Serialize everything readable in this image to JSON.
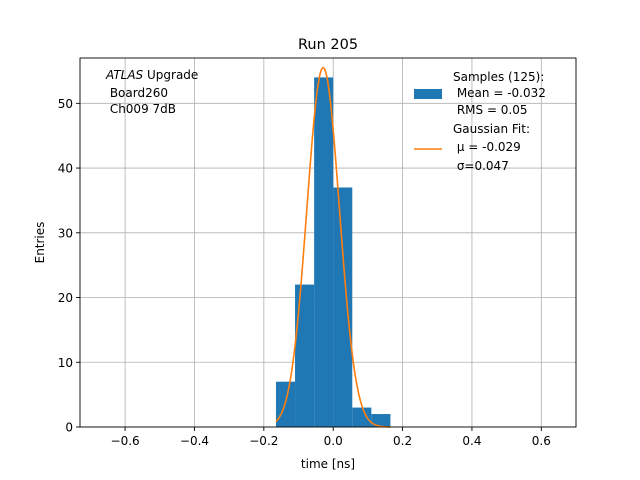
{
  "chart_data": {
    "type": "bar",
    "title": "Run 205",
    "xlabel": "time [ns]",
    "ylabel": "Entries",
    "xlim": [
      -0.73,
      0.7
    ],
    "ylim": [
      0,
      57
    ],
    "grid": true,
    "x_ticks": [
      -0.6,
      -0.4,
      -0.2,
      0.0,
      0.2,
      0.4,
      0.6
    ],
    "x_tick_labels": [
      "−0.6",
      "−0.4",
      "−0.2",
      "0.0",
      "0.2",
      "0.4",
      "0.6"
    ],
    "y_ticks": [
      0,
      10,
      20,
      30,
      40,
      50
    ],
    "y_tick_labels": [
      "0",
      "10",
      "20",
      "30",
      "40",
      "50"
    ],
    "annotation": {
      "italic": "ATLAS",
      "line1_rest": " Upgrade",
      "line2": " Board260",
      "line3": " Ch009 7dB"
    },
    "legend_position": "upper right",
    "series": [
      {
        "kind": "histogram",
        "color": "#1f77b4",
        "legend_lines": [
          "Samples (125):",
          " Mean = -0.032",
          " RMS = 0.05"
        ],
        "bins": [
          {
            "x0": -0.165,
            "x1": -0.11,
            "count": 7
          },
          {
            "x0": -0.11,
            "x1": -0.055,
            "count": 22
          },
          {
            "x0": -0.055,
            "x1": 0.0,
            "count": 54
          },
          {
            "x0": 0.0,
            "x1": 0.055,
            "count": 37
          },
          {
            "x0": 0.055,
            "x1": 0.11,
            "count": 3
          },
          {
            "x0": 0.11,
            "x1": 0.165,
            "count": 2
          }
        ]
      },
      {
        "kind": "gaussian_fit",
        "color": "#ff7f0e",
        "legend_line1": "Gaussian Fit:",
        "mu_label": " μ = -0.029",
        "sigma_label": " σ=0.047",
        "amplitude": 55.5,
        "mu": -0.029,
        "sigma": 0.047,
        "x_range": [
          -0.165,
          0.165
        ]
      }
    ]
  }
}
